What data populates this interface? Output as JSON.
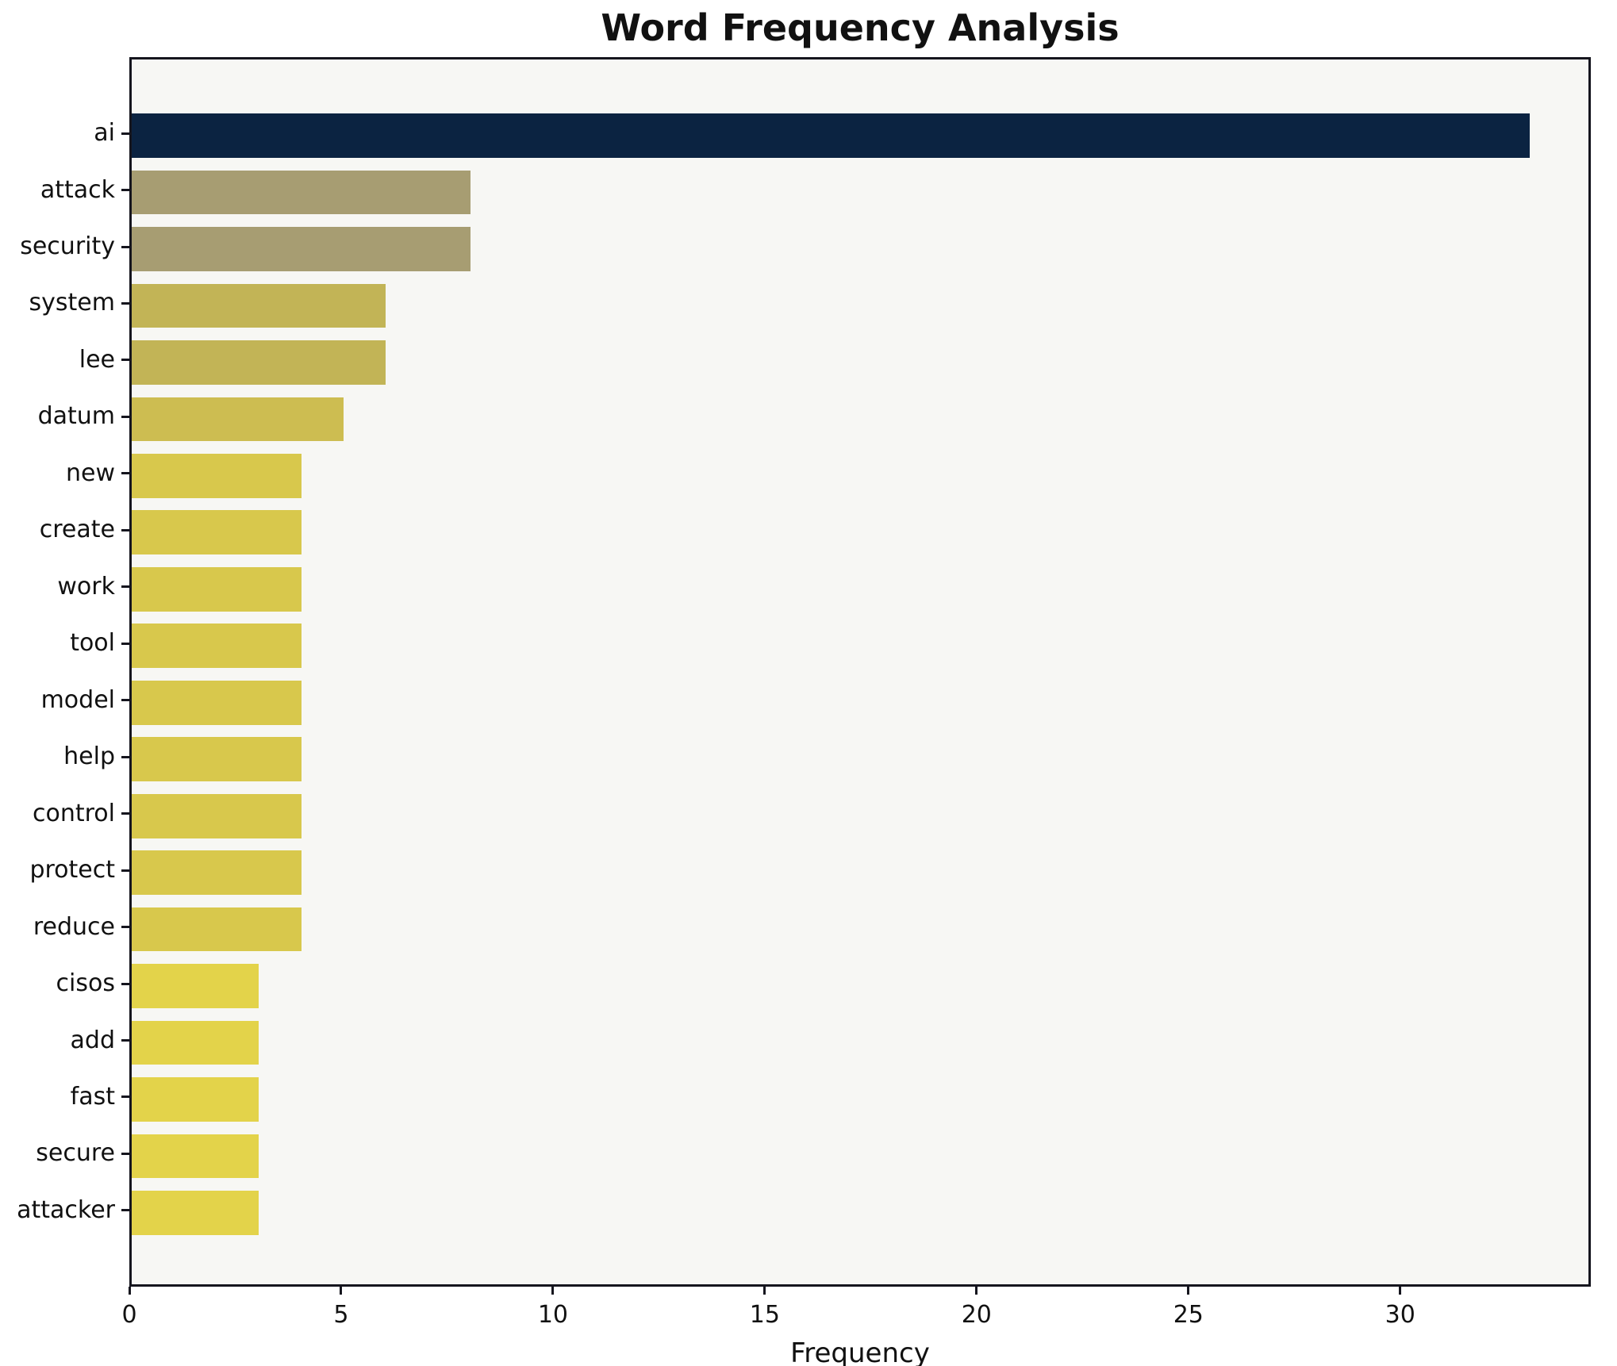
{
  "chart_data": {
    "type": "bar",
    "orientation": "horizontal",
    "title": "Word Frequency Analysis",
    "xlabel": "Frequency",
    "ylabel": "",
    "categories": [
      "ai",
      "attack",
      "security",
      "system",
      "lee",
      "datum",
      "new",
      "create",
      "work",
      "tool",
      "model",
      "help",
      "control",
      "protect",
      "reduce",
      "cisos",
      "add",
      "fast",
      "secure",
      "attacker"
    ],
    "values": [
      33,
      8,
      8,
      6,
      6,
      5,
      4,
      4,
      4,
      4,
      4,
      4,
      4,
      4,
      4,
      3,
      3,
      3,
      3,
      3
    ],
    "bar_colors": [
      "#0b2341",
      "#a79d72",
      "#a79d72",
      "#c2b456",
      "#c2b456",
      "#cdbd51",
      "#d8c84c",
      "#d8c84c",
      "#d8c84c",
      "#d8c84c",
      "#d8c84c",
      "#d8c84c",
      "#d8c84c",
      "#d8c84c",
      "#d8c84c",
      "#e3d34a",
      "#e3d34a",
      "#e3d34a",
      "#e3d34a",
      "#e3d34a"
    ],
    "xlim": [
      0,
      34.5
    ],
    "xticks": [
      0,
      5,
      10,
      15,
      20,
      25,
      30
    ],
    "grid": false,
    "legend": false,
    "plot_background": "#f7f7f4",
    "figure_background": "#ffffff"
  }
}
